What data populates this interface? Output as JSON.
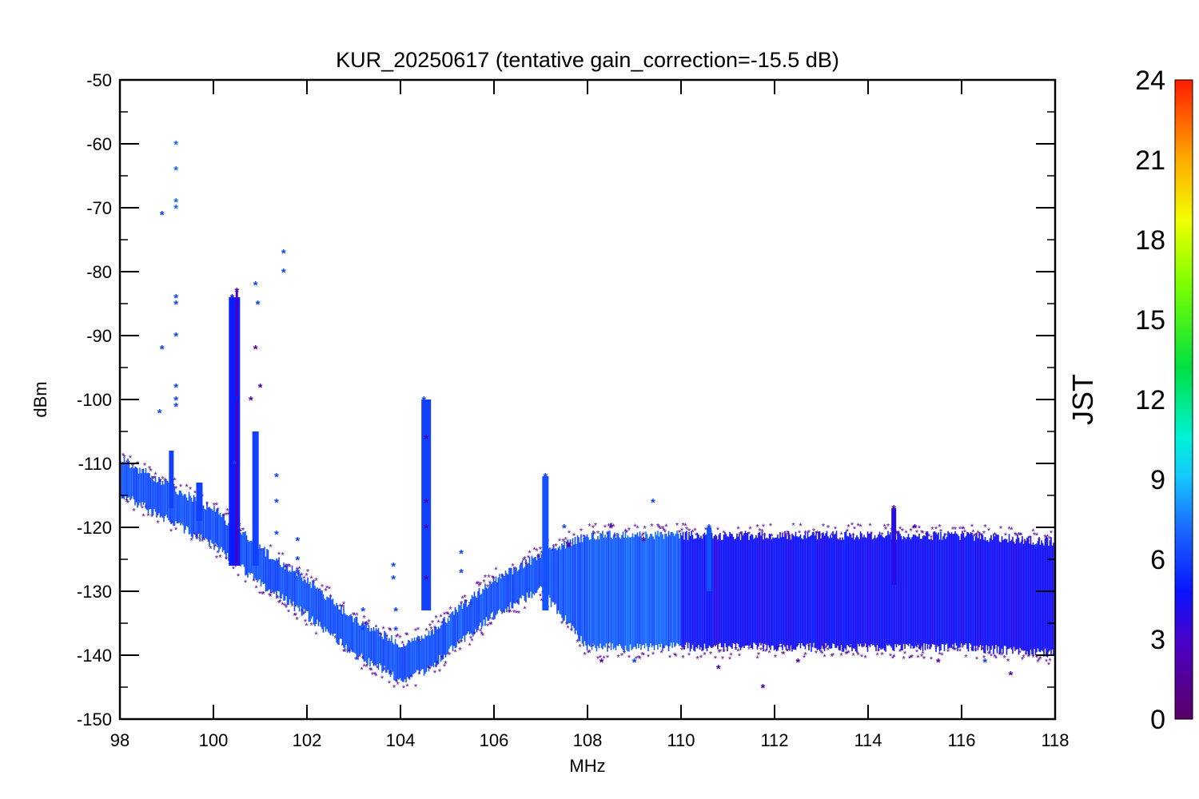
{
  "chart_data": {
    "type": "scatter",
    "title": "KUR_20250617 (tentative gain_correction=-15.5 dB)",
    "xlabel": "MHz",
    "ylabel": "dBm",
    "xlim": [
      98,
      118
    ],
    "ylim": [
      -150,
      -50
    ],
    "x_ticks": [
      98,
      100,
      102,
      104,
      106,
      108,
      110,
      112,
      114,
      116,
      118
    ],
    "y_ticks": [
      -50,
      -60,
      -70,
      -80,
      -90,
      -100,
      -110,
      -120,
      -130,
      -140,
      -150
    ],
    "colorbar": {
      "label": "JST",
      "range": [
        0,
        24
      ],
      "ticks": [
        0,
        3,
        6,
        9,
        12,
        15,
        18,
        21,
        24
      ],
      "colormap": "rainbow (purple to red)"
    },
    "grid": false,
    "marker": "asterisk",
    "noise_floor": {
      "x": [
        98,
        99,
        100,
        101,
        102,
        103,
        104,
        104.5,
        105,
        106,
        107,
        108,
        110,
        112,
        114,
        116,
        118
      ],
      "y_center": [
        -112,
        -116,
        -120,
        -126,
        -131,
        -137,
        -141,
        -140,
        -137,
        -131,
        -127,
        -130,
        -130,
        -130,
        -130,
        -130,
        -131
      ],
      "y_spread": [
        2,
        2,
        2,
        2,
        2,
        2,
        2,
        2,
        2,
        2,
        2,
        8,
        8,
        8,
        8,
        8,
        8
      ]
    },
    "peak_points": [
      {
        "x": 99.2,
        "y": -60,
        "jst": 7
      },
      {
        "x": 99.2,
        "y": -64,
        "jst": 7
      },
      {
        "x": 99.2,
        "y": -69,
        "jst": 7
      },
      {
        "x": 99.2,
        "y": -70,
        "jst": 7
      },
      {
        "x": 98.9,
        "y": -71,
        "jst": 6
      },
      {
        "x": 99.2,
        "y": -84,
        "jst": 6
      },
      {
        "x": 99.2,
        "y": -85,
        "jst": 6
      },
      {
        "x": 99.2,
        "y": -90,
        "jst": 6
      },
      {
        "x": 98.9,
        "y": -92,
        "jst": 6
      },
      {
        "x": 99.2,
        "y": -98,
        "jst": 6
      },
      {
        "x": 99.2,
        "y": -100,
        "jst": 6
      },
      {
        "x": 99.2,
        "y": -101,
        "jst": 6
      },
      {
        "x": 98.85,
        "y": -102,
        "jst": 6
      },
      {
        "x": 100.4,
        "y": -84,
        "jst": 5
      },
      {
        "x": 100.5,
        "y": -83,
        "jst": 2
      },
      {
        "x": 100.5,
        "y": -100,
        "jst": 5
      },
      {
        "x": 100.45,
        "y": -110,
        "jst": 6
      },
      {
        "x": 100.9,
        "y": -82,
        "jst": 6
      },
      {
        "x": 100.95,
        "y": -85,
        "jst": 6
      },
      {
        "x": 100.9,
        "y": -92,
        "jst": 2
      },
      {
        "x": 101.0,
        "y": -98,
        "jst": 2
      },
      {
        "x": 100.8,
        "y": -100,
        "jst": 2
      },
      {
        "x": 101.5,
        "y": -77,
        "jst": 6
      },
      {
        "x": 101.5,
        "y": -80,
        "jst": 6
      },
      {
        "x": 101.35,
        "y": -112,
        "jst": 6
      },
      {
        "x": 101.35,
        "y": -116,
        "jst": 6
      },
      {
        "x": 101.35,
        "y": -121,
        "jst": 6
      },
      {
        "x": 101.8,
        "y": -122,
        "jst": 6
      },
      {
        "x": 101.8,
        "y": -125,
        "jst": 6
      },
      {
        "x": 101.8,
        "y": -127,
        "jst": 6
      },
      {
        "x": 103.2,
        "y": -133,
        "jst": 6
      },
      {
        "x": 103.2,
        "y": -136,
        "jst": 6
      },
      {
        "x": 103.85,
        "y": -126,
        "jst": 6
      },
      {
        "x": 103.85,
        "y": -128,
        "jst": 6
      },
      {
        "x": 103.9,
        "y": -133,
        "jst": 6
      },
      {
        "x": 103.9,
        "y": -136,
        "jst": 6
      },
      {
        "x": 104.5,
        "y": -100,
        "jst": 6
      },
      {
        "x": 104.55,
        "y": -104,
        "jst": 6
      },
      {
        "x": 104.55,
        "y": -106,
        "jst": 2
      },
      {
        "x": 104.55,
        "y": -110,
        "jst": 6
      },
      {
        "x": 104.55,
        "y": -113,
        "jst": 6
      },
      {
        "x": 104.55,
        "y": -116,
        "jst": 2
      },
      {
        "x": 104.55,
        "y": -120,
        "jst": 2
      },
      {
        "x": 104.55,
        "y": -124,
        "jst": 6
      },
      {
        "x": 104.55,
        "y": -128,
        "jst": 2
      },
      {
        "x": 104.55,
        "y": -132,
        "jst": 6
      },
      {
        "x": 105.3,
        "y": -124,
        "jst": 6
      },
      {
        "x": 105.3,
        "y": -127,
        "jst": 6
      },
      {
        "x": 105.5,
        "y": -132,
        "jst": 6
      },
      {
        "x": 107.1,
        "y": -112,
        "jst": 6
      },
      {
        "x": 107.5,
        "y": -120,
        "jst": 6
      },
      {
        "x": 107.6,
        "y": -123,
        "jst": 2
      },
      {
        "x": 108.5,
        "y": -120,
        "jst": 2
      },
      {
        "x": 109.4,
        "y": -116,
        "jst": 6
      },
      {
        "x": 109.2,
        "y": -122,
        "jst": 2
      },
      {
        "x": 110.6,
        "y": -120,
        "jst": 6
      },
      {
        "x": 111.75,
        "y": -145,
        "jst": 2
      },
      {
        "x": 114.55,
        "y": -117,
        "jst": 2
      },
      {
        "x": 115.0,
        "y": -120,
        "jst": 2
      },
      {
        "x": 117.05,
        "y": -143,
        "jst": 2
      },
      {
        "x": 117.6,
        "y": -123,
        "jst": 6
      },
      {
        "x": 108.3,
        "y": -141,
        "jst": 2
      },
      {
        "x": 109.0,
        "y": -141,
        "jst": 6
      },
      {
        "x": 110.8,
        "y": -142,
        "jst": 2
      },
      {
        "x": 112.5,
        "y": -141,
        "jst": 2
      },
      {
        "x": 115.5,
        "y": -141,
        "jst": 2
      },
      {
        "x": 116.5,
        "y": -141,
        "jst": 6
      }
    ]
  }
}
